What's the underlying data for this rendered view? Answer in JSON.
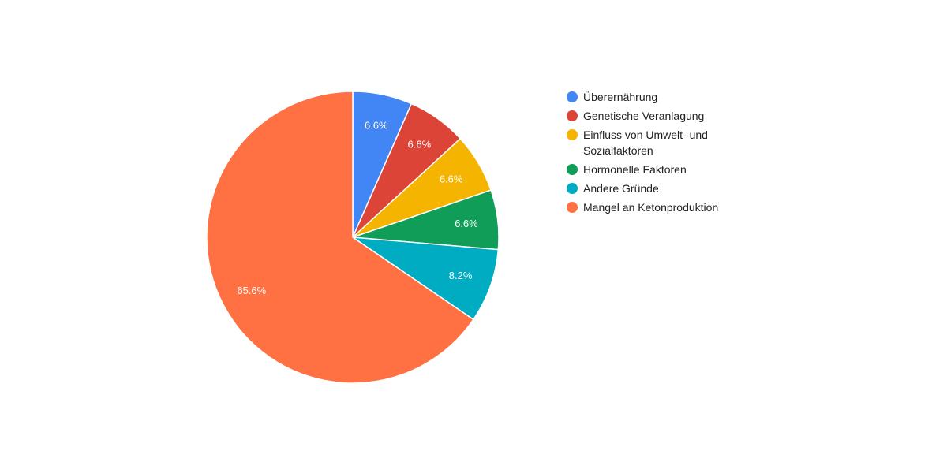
{
  "chart_data": {
    "type": "pie",
    "title": "",
    "slices": [
      {
        "label": "Überernährung",
        "value": 6.6,
        "display": "6.6%",
        "color": "#4285f4"
      },
      {
        "label": "Genetische Veranlagung",
        "value": 6.6,
        "display": "6.6%",
        "color": "#db4437"
      },
      {
        "label": "Einfluss von Umwelt- und Sozialfaktoren",
        "value": 6.6,
        "display": "6.6%",
        "color": "#f4b400"
      },
      {
        "label": "Hormonelle Faktoren",
        "value": 6.6,
        "display": "6.6%",
        "color": "#0f9d58"
      },
      {
        "label": "Andere Gründe",
        "value": 8.2,
        "display": "8.2%",
        "color": "#00acc1"
      },
      {
        "label": "Mangel an Ketonproduktion",
        "value": 65.6,
        "display": "65.6%",
        "color": "#ff7043"
      }
    ],
    "legend_position": "right"
  }
}
